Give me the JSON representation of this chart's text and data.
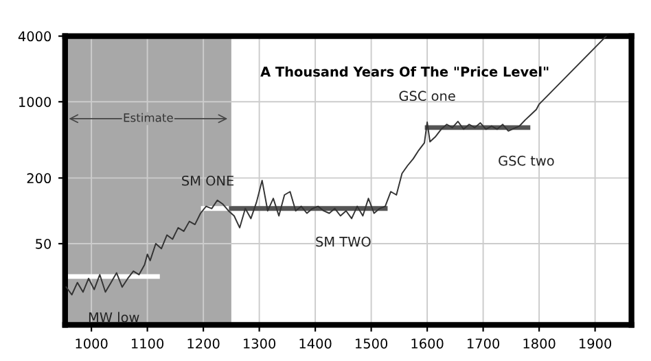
{
  "chart_data": {
    "type": "line",
    "title": "A Thousand Years Of The \"Price Level\"",
    "log": "y",
    "grid": true,
    "xlim": [
      953,
      1965
    ],
    "ylim": [
      9,
      4000
    ],
    "xticks": [
      1000,
      1100,
      1200,
      1300,
      1400,
      1500,
      1600,
      1700,
      1800,
      1900
    ],
    "yticks": [
      50,
      200,
      1000,
      4000
    ],
    "bands": [
      {
        "axis": "x",
        "from": 953,
        "to": 1250,
        "label": "Estimate",
        "color": "#a8a8a8"
      }
    ],
    "annotations": [
      {
        "text": "MW low",
        "x": 1040,
        "y": 25
      },
      {
        "text": "SM ONE",
        "x": 1225,
        "y": 105
      },
      {
        "text": "SM TWO",
        "x": 1450,
        "y": 105
      },
      {
        "text": "GSC one",
        "x": 1600,
        "y": 580
      },
      {
        "text": "GSC two",
        "x": 1760,
        "y": 580
      }
    ],
    "series": [
      {
        "type": "line",
        "color": "#333333",
        "x": [
          955,
          965,
          975,
          985,
          995,
          1005,
          1015,
          1025,
          1035,
          1045,
          1055,
          1065,
          1075,
          1085,
          1095,
          1100,
          1105,
          1115,
          1125,
          1135,
          1145,
          1155,
          1165,
          1175,
          1185,
          1195,
          1205,
          1215,
          1225,
          1235,
          1245,
          1255,
          1265,
          1275,
          1285,
          1295,
          1305,
          1315,
          1325,
          1335,
          1345,
          1355,
          1365,
          1375,
          1385,
          1395,
          1405,
          1415,
          1425,
          1435,
          1445,
          1455,
          1465,
          1475,
          1485,
          1495,
          1505,
          1515,
          1525,
          1535,
          1545,
          1555,
          1565,
          1575,
          1585,
          1595,
          1600,
          1605,
          1615,
          1625,
          1635,
          1645,
          1655,
          1665,
          1675,
          1685,
          1695,
          1705,
          1715,
          1725,
          1735,
          1745,
          1755,
          1765,
          1775,
          1785,
          1795,
          1800,
          1920
        ],
        "values": [
          20,
          17,
          22,
          18,
          24,
          19,
          26,
          18,
          22,
          27,
          20,
          24,
          28,
          26,
          32,
          40,
          35,
          50,
          45,
          60,
          55,
          70,
          65,
          80,
          75,
          95,
          110,
          105,
          125,
          115,
          100,
          90,
          70,
          105,
          85,
          120,
          190,
          100,
          130,
          90,
          140,
          150,
          100,
          110,
          95,
          105,
          110,
          100,
          95,
          105,
          90,
          100,
          85,
          110,
          90,
          130,
          95,
          105,
          110,
          150,
          140,
          220,
          260,
          300,
          360,
          420,
          650,
          430,
          480,
          560,
          620,
          580,
          660,
          560,
          620,
          580,
          640,
          560,
          600,
          560,
          620,
          540,
          570,
          600,
          680,
          760,
          850,
          950,
          4000
        ]
      },
      {
        "type": "line",
        "color": "#ffffff",
        "x": [
          953,
          1118
        ],
        "values": [
          25,
          25
        ]
      },
      {
        "type": "line",
        "color": "#ffffff",
        "x": [
          1200,
          1250
        ],
        "values": [
          105,
          105
        ]
      },
      {
        "type": "line",
        "color": "#555555",
        "x": [
          1250,
          1525
        ],
        "values": [
          105,
          105
        ]
      },
      {
        "type": "line",
        "color": "#555555",
        "x": [
          1600,
          1780
        ],
        "values": [
          580,
          580
        ]
      }
    ]
  }
}
